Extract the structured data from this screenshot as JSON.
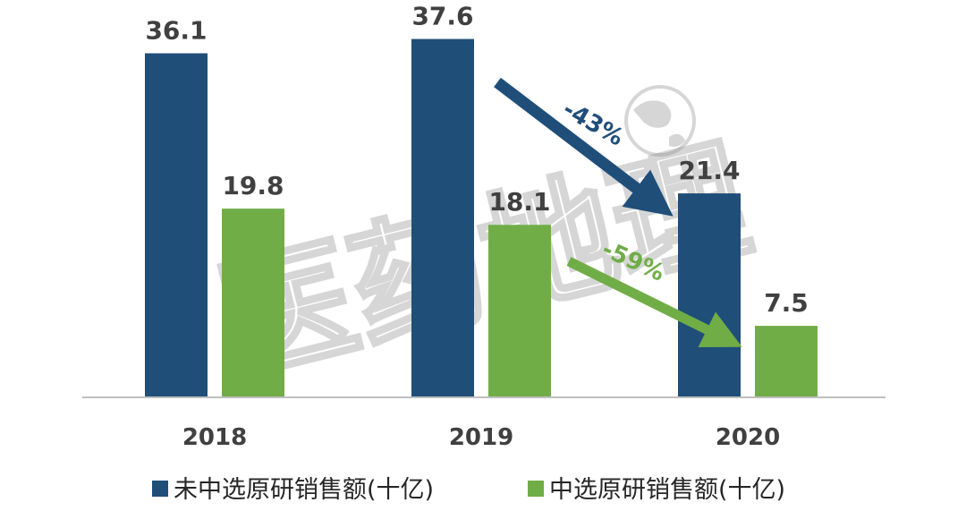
{
  "watermark": "医药地理",
  "chart_data": {
    "type": "bar",
    "categories": [
      "2018",
      "2019",
      "2020"
    ],
    "series": [
      {
        "name": "未中选原研销售额(十亿)",
        "values": [
          36.1,
          37.6,
          21.4
        ],
        "color": "#1f4e79"
      },
      {
        "name": "中选原研销售额(十亿)",
        "values": [
          19.8,
          18.1,
          7.5
        ],
        "color": "#70ad47"
      }
    ],
    "ylim": [
      0,
      40
    ],
    "grid": false,
    "legend": "bottom",
    "annotations": [
      {
        "text": "-43%",
        "color": "#1f4e79",
        "series": 0,
        "from": "2019",
        "to": "2020"
      },
      {
        "text": "-59%",
        "color": "#70ad47",
        "series": 1,
        "from": "2019",
        "to": "2020"
      }
    ]
  }
}
